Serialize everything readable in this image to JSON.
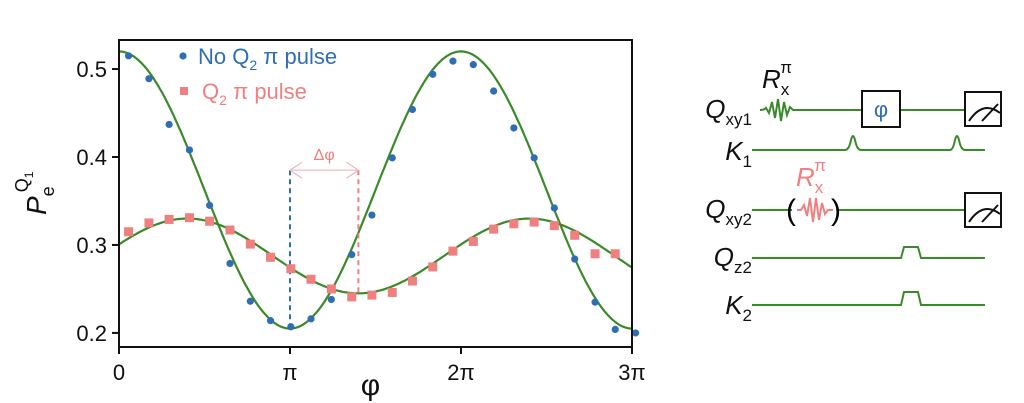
{
  "chart_data": {
    "type": "scatter",
    "xlabel": "φ",
    "ylabel": "P_e^{Q_1}",
    "ylabel_parts": {
      "main": "P",
      "sub": "e",
      "sup": "Q",
      "sup_sub": "1"
    },
    "xlim_pi": [
      0,
      3
    ],
    "ylim": [
      0.184,
      0.533
    ],
    "xticks_pi": [
      0,
      1,
      2,
      3
    ],
    "xtick_labels": [
      "0",
      "π",
      "2π",
      "3π"
    ],
    "yticks": [
      0.2,
      0.3,
      0.4,
      0.5
    ],
    "ytick_labels": [
      "0.2",
      "0.3",
      "0.4",
      "0.5"
    ],
    "legend_position": "top-left",
    "series": [
      {
        "name": "No Q2 π pulse",
        "label_main": "No Q",
        "label_sub": "2",
        "label_rest": " π pulse",
        "color": "#2f6db5",
        "marker": "circle",
        "x_pi": [
          0.056,
          0.175,
          0.293,
          0.412,
          0.53,
          0.649,
          0.768,
          0.886,
          1.005,
          1.123,
          1.242,
          1.361,
          1.479,
          1.598,
          1.716,
          1.835,
          1.953,
          2.072,
          2.191,
          2.309,
          2.428,
          2.546,
          2.665,
          2.784,
          2.902,
          3.021
        ],
        "y": [
          0.515,
          0.489,
          0.437,
          0.408,
          0.345,
          0.279,
          0.236,
          0.214,
          0.207,
          0.216,
          0.238,
          0.289,
          0.334,
          0.399,
          0.454,
          0.494,
          0.509,
          0.505,
          0.475,
          0.433,
          0.399,
          0.342,
          0.284,
          0.235,
          0.204,
          0.2
        ],
        "fit": {
          "offset": 0.3625,
          "amplitude": 0.1575,
          "phase_pi": 0
        }
      },
      {
        "name": "Q2 π pulse",
        "label_main": "Q",
        "label_sub": "2",
        "label_rest": " π pulse",
        "color": "#f07f7f",
        "marker": "square",
        "x_pi": [
          0.056,
          0.175,
          0.293,
          0.412,
          0.53,
          0.649,
          0.768,
          0.886,
          1.005,
          1.123,
          1.242,
          1.361,
          1.479,
          1.598,
          1.716,
          1.835,
          1.953,
          2.072,
          2.191,
          2.309,
          2.428,
          2.546,
          2.665,
          2.784,
          2.902
        ],
        "y": [
          0.315,
          0.325,
          0.329,
          0.331,
          0.327,
          0.317,
          0.301,
          0.286,
          0.273,
          0.261,
          0.25,
          0.241,
          0.243,
          0.246,
          0.259,
          0.275,
          0.293,
          0.304,
          0.318,
          0.324,
          0.326,
          0.322,
          0.311,
          0.29,
          0.29
        ],
        "fit": {
          "offset": 0.2875,
          "amplitude": -0.0425,
          "phase_pi": 1.4
        }
      }
    ],
    "fit_color": "#3a8a2a",
    "annotation": {
      "text": "Δφ",
      "from_pi": 1.0,
      "to_pi": 1.4,
      "level": 0.385
    }
  },
  "circuit": {
    "lines": [
      {
        "main": "Q",
        "sub": "xy1"
      },
      {
        "main": "K",
        "sub": "1"
      },
      {
        "main": "Q",
        "sub": "xy2"
      },
      {
        "main": "Q",
        "sub": "z2"
      },
      {
        "main": "K",
        "sub": "2"
      }
    ],
    "gate1": {
      "main": "R",
      "sub": "x",
      "sup": "π"
    },
    "gate2": {
      "main": "R",
      "sub": "x",
      "sup": "π"
    },
    "phase_gate": "φ",
    "colors": {
      "line": "#3a8a2a",
      "phase": "#2f6db5",
      "gate2": "#f07f7f"
    }
  }
}
